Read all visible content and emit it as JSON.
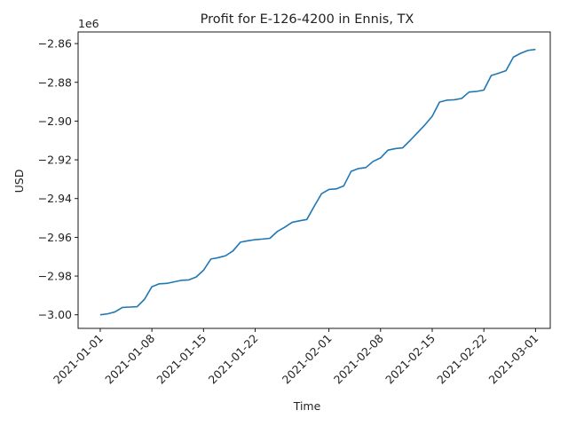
{
  "chart_data": {
    "type": "line",
    "title": "Profit for E-126-4200 in Ennis, TX",
    "xlabel": "Time",
    "ylabel": "USD",
    "y_offset_label": "1e6",
    "ylim": [
      -3007000,
      -2854000
    ],
    "xlim": [
      "2020-12-29",
      "2021-03-03"
    ],
    "grid": false,
    "legend": "none",
    "line_color": "#1f77b4",
    "x_ticks": [
      "2021-01-01",
      "2021-01-08",
      "2021-01-15",
      "2021-01-22",
      "2021-02-01",
      "2021-02-08",
      "2021-02-15",
      "2021-02-22",
      "2021-03-01"
    ],
    "y_ticks": [
      -3000000,
      -2980000,
      -2960000,
      -2940000,
      -2920000,
      -2900000,
      -2880000,
      -2860000
    ],
    "y_tick_labels": [
      "−3.00",
      "−2.98",
      "−2.96",
      "−2.94",
      "−2.92",
      "−2.90",
      "−2.88",
      "−2.86"
    ],
    "series": [
      {
        "x": [
          "2021-01-01",
          "2021-01-02",
          "2021-01-03",
          "2021-01-04",
          "2021-01-05",
          "2021-01-06",
          "2021-01-07",
          "2021-01-08",
          "2021-01-09",
          "2021-01-10",
          "2021-01-11",
          "2021-01-12",
          "2021-01-13",
          "2021-01-14",
          "2021-01-15",
          "2021-01-16",
          "2021-01-17",
          "2021-01-18",
          "2021-01-19",
          "2021-01-20",
          "2021-01-21",
          "2021-01-22",
          "2021-01-23",
          "2021-01-24",
          "2021-01-25",
          "2021-01-26",
          "2021-01-27",
          "2021-01-28",
          "2021-01-29",
          "2021-01-30",
          "2021-01-31",
          "2021-02-01",
          "2021-02-02",
          "2021-02-03",
          "2021-02-04",
          "2021-02-05",
          "2021-02-06",
          "2021-02-07",
          "2021-02-08",
          "2021-02-09",
          "2021-02-10",
          "2021-02-11",
          "2021-02-12",
          "2021-02-13",
          "2021-02-14",
          "2021-02-15",
          "2021-02-16",
          "2021-02-17",
          "2021-02-18",
          "2021-02-19",
          "2021-02-20",
          "2021-02-21",
          "2021-02-22",
          "2021-02-23",
          "2021-02-24",
          "2021-02-25",
          "2021-02-26",
          "2021-02-27",
          "2021-02-28",
          "2021-03-01"
        ],
        "values": [
          -3000000,
          -2999500,
          -2998500,
          -2996200,
          -2996000,
          -2995800,
          -2992000,
          -2985500,
          -2984000,
          -2983800,
          -2983000,
          -2982200,
          -2982000,
          -2980500,
          -2977000,
          -2971200,
          -2970500,
          -2969500,
          -2967000,
          -2962500,
          -2961800,
          -2961200,
          -2960900,
          -2960500,
          -2957000,
          -2954800,
          -2952300,
          -2951500,
          -2950800,
          -2944000,
          -2937500,
          -2935300,
          -2935000,
          -2933500,
          -2926000,
          -2924500,
          -2924000,
          -2920800,
          -2919000,
          -2915000,
          -2914200,
          -2913800,
          -2910000,
          -2906000,
          -2902000,
          -2897500,
          -2890200,
          -2889200,
          -2889000,
          -2888300,
          -2885000,
          -2884700,
          -2884000,
          -2876500,
          -2875300,
          -2874000,
          -2867000,
          -2865000,
          -2863500,
          -2863000
        ]
      }
    ]
  }
}
